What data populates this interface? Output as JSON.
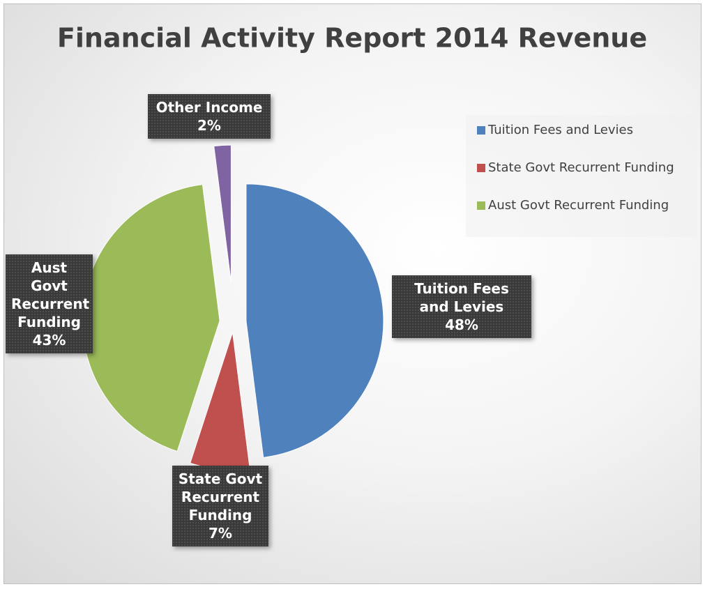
{
  "chart_data": {
    "type": "pie",
    "title": "Financial Activity Report 2014 Revenue",
    "categories": [
      "Tuition Fees and Levies",
      "State Govt Recurrent Funding",
      "Aust Govt Recurrent Funding",
      "Other Income"
    ],
    "values": [
      48,
      7,
      43,
      2
    ],
    "value_labels": [
      "48%",
      "7%",
      "43%",
      "2%"
    ],
    "colors": [
      "#4f81bd",
      "#c0504d",
      "#9bbb59",
      "#8064a2"
    ],
    "legend": [
      "Tuition Fees and Levies",
      "State Govt Recurrent Funding",
      "Aust Govt Recurrent Funding"
    ],
    "legend_position": "right"
  }
}
